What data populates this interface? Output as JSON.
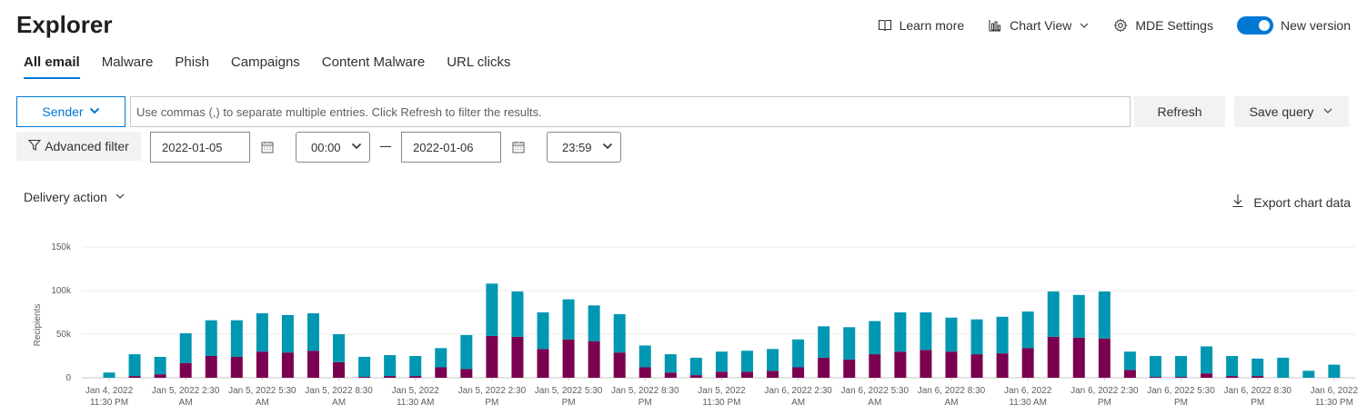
{
  "app": {
    "title": "Explorer"
  },
  "top_actions": {
    "learn_more": "Learn more",
    "chart_view": "Chart View",
    "mde_settings": "MDE Settings",
    "new_version": "New version",
    "new_version_on": true
  },
  "tabs": [
    {
      "label": "All email",
      "active": true
    },
    {
      "label": "Malware",
      "active": false
    },
    {
      "label": "Phish",
      "active": false
    },
    {
      "label": "Campaigns",
      "active": false
    },
    {
      "label": "Content Malware",
      "active": false
    },
    {
      "label": "URL clicks",
      "active": false
    }
  ],
  "filter": {
    "field": "Sender",
    "placeholder": "Use commas (,) to separate multiple entries. Click Refresh to filter the results.",
    "value": "",
    "refresh": "Refresh",
    "save_query": "Save query"
  },
  "range": {
    "advanced_filter": "Advanced filter",
    "start_date": "2022-01-05",
    "start_time": "00:00",
    "end_date": "2022-01-06",
    "end_time": "23:59"
  },
  "delivery_action": "Delivery action",
  "export_chart_data": "Export chart data",
  "colors": {
    "accent": "#0078d4",
    "series_top": "#0097b2",
    "series_bottom": "#7a0050"
  },
  "chart_data": {
    "type": "bar",
    "stacked": true,
    "ylabel": "Recipients",
    "ylim": [
      0,
      150000
    ],
    "yticks": [
      "0",
      "50k",
      "100k",
      "150k"
    ],
    "grid": true,
    "x_tick_labels": [
      {
        "line1": "Jan 4, 2022",
        "line2": "11:30 PM",
        "index": 0
      },
      {
        "line1": "Jan 5, 2022 2:30",
        "line2": "AM",
        "index": 3
      },
      {
        "line1": "Jan 5, 2022 5:30",
        "line2": "AM",
        "index": 6
      },
      {
        "line1": "Jan 5, 2022 8:30",
        "line2": "AM",
        "index": 9
      },
      {
        "line1": "Jan 5, 2022",
        "line2": "11:30 AM",
        "index": 12
      },
      {
        "line1": "Jan 5, 2022 2:30",
        "line2": "PM",
        "index": 15
      },
      {
        "line1": "Jan 5, 2022 5:30",
        "line2": "PM",
        "index": 18
      },
      {
        "line1": "Jan 5, 2022 8:30",
        "line2": "PM",
        "index": 21
      },
      {
        "line1": "Jan 5, 2022",
        "line2": "11:30 PM",
        "index": 24
      },
      {
        "line1": "Jan 6, 2022 2:30",
        "line2": "AM",
        "index": 27
      },
      {
        "line1": "Jan 6, 2022 5:30",
        "line2": "AM",
        "index": 30
      },
      {
        "line1": "Jan 6, 2022 8:30",
        "line2": "AM",
        "index": 33
      },
      {
        "line1": "Jan 6, 2022",
        "line2": "11:30 AM",
        "index": 36
      },
      {
        "line1": "Jan 6, 2022 2:30",
        "line2": "PM",
        "index": 39
      },
      {
        "line1": "Jan 6, 2022 5:30",
        "line2": "PM",
        "index": 42
      },
      {
        "line1": "Jan 6, 2022 8:30",
        "line2": "PM",
        "index": 45
      },
      {
        "line1": "Jan 6, 2022",
        "line2": "11:30 PM",
        "index": 48
      }
    ],
    "series": [
      {
        "color": "#7a0050",
        "values": [
          0,
          2000,
          4000,
          17000,
          25000,
          24000,
          30000,
          29000,
          31000,
          18000,
          1000,
          2000,
          2000,
          12000,
          10000,
          48000,
          47000,
          33000,
          44000,
          42000,
          29000,
          12000,
          6000,
          3000,
          7000,
          7000,
          8000,
          12000,
          23000,
          21000,
          27000,
          30000,
          32000,
          30000,
          27000,
          28000,
          34000,
          47000,
          46000,
          45000,
          9000,
          1000,
          1000,
          5000,
          2000,
          2000,
          0,
          0,
          0
        ]
      },
      {
        "color": "#0097b2",
        "values": [
          6000,
          25000,
          20000,
          34000,
          41000,
          42000,
          44000,
          43000,
          43000,
          32000,
          23000,
          24000,
          23000,
          22000,
          39000,
          60000,
          52000,
          42000,
          46000,
          41000,
          44000,
          25000,
          21000,
          20000,
          23000,
          24000,
          25000,
          32000,
          36000,
          37000,
          38000,
          45000,
          43000,
          39000,
          40000,
          42000,
          42000,
          52000,
          49000,
          54000,
          21000,
          24000,
          24000,
          31000,
          23000,
          20000,
          23000,
          8000,
          15000
        ]
      }
    ]
  }
}
